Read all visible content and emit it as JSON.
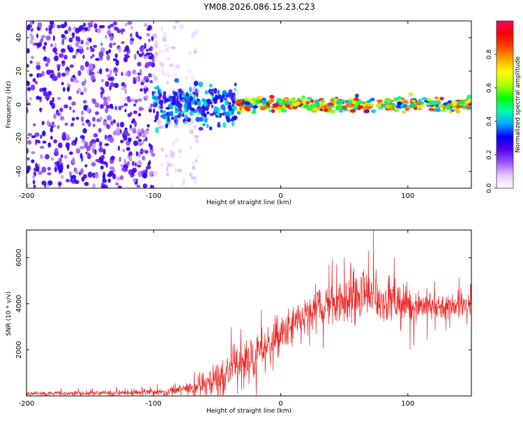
{
  "title": "YM08.2026.086.15.23.C23",
  "colors": {
    "snr_line": "#ee2222",
    "cb_stops": [
      "#ffffff",
      "#e6c8ff",
      "#9955ff",
      "#5500ee",
      "#0000ff",
      "#00aaff",
      "#00ffaa",
      "#00ff00",
      "#aaff00",
      "#ffff00",
      "#ffaa00",
      "#ff4400",
      "#ff0000",
      "#ff0066"
    ]
  },
  "chart_data": [
    {
      "type": "heatmap",
      "name": "spectrogram",
      "xlabel": "Height of straight line (km)",
      "ylabel": "Frequency (Hz)",
      "xlim": [
        -200,
        150
      ],
      "ylim": [
        -50,
        50
      ],
      "xticks": [
        {
          "value": -200,
          "label": "-200"
        },
        {
          "value": -100,
          "label": "-100"
        },
        {
          "value": 0,
          "label": "0"
        },
        {
          "value": 100,
          "label": "100"
        }
      ],
      "yticks": [
        {
          "value": -40,
          "label": "-40"
        },
        {
          "value": -20,
          "label": "-20"
        },
        {
          "value": 0,
          "label": "0"
        },
        {
          "value": 20,
          "label": "20"
        },
        {
          "value": 40,
          "label": "40"
        }
      ],
      "colorbar": {
        "label": "Normalized spectral amplitude",
        "range": [
          0,
          1
        ],
        "ticks": [
          {
            "value": 0.0,
            "label": "0.0"
          },
          {
            "value": 0.2,
            "label": "0.2"
          },
          {
            "value": 0.4,
            "label": "0.4"
          },
          {
            "value": 0.6,
            "label": "0.6"
          },
          {
            "value": 0.8,
            "label": "0.8"
          }
        ]
      },
      "regions": [
        {
          "x_from": -200,
          "x_to": -100,
          "y_from": -50,
          "y_to": 50,
          "amplitude": [
            0.1,
            0.3
          ],
          "density": "dense"
        },
        {
          "x_from": -100,
          "x_to": -65,
          "y_from": -50,
          "y_to": 50,
          "amplitude": [
            0.03,
            0.12
          ],
          "density": "sparse"
        },
        {
          "x_from": -100,
          "x_to": -35,
          "y_from": -12,
          "y_to": 12,
          "amplitude": [
            0.2,
            0.45
          ],
          "density": "band"
        },
        {
          "x_from": -35,
          "x_to": 150,
          "y_from": -4,
          "y_to": 4,
          "amplitude": [
            0.3,
            0.95
          ],
          "density": "line"
        }
      ]
    },
    {
      "type": "line",
      "name": "snr",
      "xlabel": "Height of straight line (km)",
      "ylabel": "SNR (10 * v/v)",
      "xlim": [
        -200,
        150
      ],
      "ylim": [
        0,
        7200
      ],
      "xticks": [
        {
          "value": -200,
          "label": "-200"
        },
        {
          "value": -100,
          "label": "-100"
        },
        {
          "value": 0,
          "label": "0"
        },
        {
          "value": 100,
          "label": "100"
        }
      ],
      "yticks": [
        {
          "value": 2000,
          "label": "2000"
        },
        {
          "value": 4000,
          "label": "4000"
        },
        {
          "value": 6000,
          "label": "6000"
        }
      ],
      "envelope": {
        "x": [
          -200,
          -120,
          -90,
          -70,
          -60,
          -50,
          -40,
          -30,
          -20,
          -10,
          0,
          10,
          20,
          30,
          40,
          50,
          60,
          70,
          80,
          90,
          100,
          110,
          120,
          130,
          150
        ],
        "mean": [
          100,
          120,
          200,
          320,
          500,
          800,
          1100,
          1500,
          1800,
          2200,
          2600,
          3000,
          3400,
          3900,
          4100,
          4200,
          4300,
          4200,
          4200,
          4100,
          4000,
          3950,
          3900,
          3900,
          3900
        ],
        "spread": [
          60,
          80,
          120,
          200,
          400,
          500,
          700,
          700,
          600,
          600,
          600,
          700,
          700,
          700,
          750,
          800,
          800,
          800,
          700,
          650,
          600,
          500,
          450,
          400,
          350
        ]
      },
      "peaks": [
        {
          "x": 73,
          "y": 7200
        },
        {
          "x": 69,
          "y": 6300
        },
        {
          "x": 50,
          "y": 6000
        },
        {
          "x": 55,
          "y": 5800
        },
        {
          "x": 38,
          "y": 5700
        }
      ]
    }
  ]
}
